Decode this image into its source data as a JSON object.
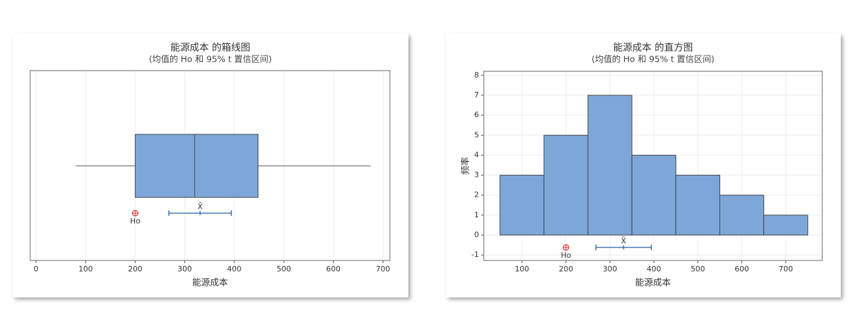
{
  "chart_data": [
    {
      "type": "box",
      "title": "能源成本 的箱线图",
      "subtitle": "(均值的 Ho 和 95% t 置信区间)",
      "x_label": "能源成本",
      "box": {
        "min": 80,
        "q1": 200,
        "median": 320,
        "q3": 448,
        "max": 675
      },
      "color": "#7da7d9",
      "hypothesis": {
        "label": "Ho",
        "value": 200
      },
      "mean": {
        "label": "X̄",
        "value": 331,
        "ci": [
          268,
          394
        ]
      },
      "xlim": [
        -12,
        714
      ],
      "xticks": [
        0,
        100,
        200,
        300,
        400,
        500,
        600,
        700
      ],
      "grid": true
    },
    {
      "type": "histogram",
      "title": "能源成本 的直方图",
      "subtitle": "(均值的 Ho 和 95% t 置信区间)",
      "x_label": "能源成本",
      "y_label": "频率",
      "bins": [
        50,
        150,
        250,
        350,
        450,
        550,
        650,
        750
      ],
      "counts": [
        3,
        5,
        7,
        4,
        3,
        2,
        1
      ],
      "color": "#7da7d9",
      "hypothesis": {
        "label": "Ho",
        "value": 200
      },
      "mean": {
        "label": "X̄",
        "value": 331,
        "ci": [
          268,
          394
        ]
      },
      "xlim": [
        13,
        783
      ],
      "xticks": [
        100,
        200,
        300,
        400,
        500,
        600,
        700
      ],
      "ylim": [
        -1.27,
        8.2
      ],
      "yticks": [
        -1,
        0,
        1,
        2,
        3,
        4,
        5,
        6,
        7,
        8
      ],
      "grid": true
    }
  ]
}
